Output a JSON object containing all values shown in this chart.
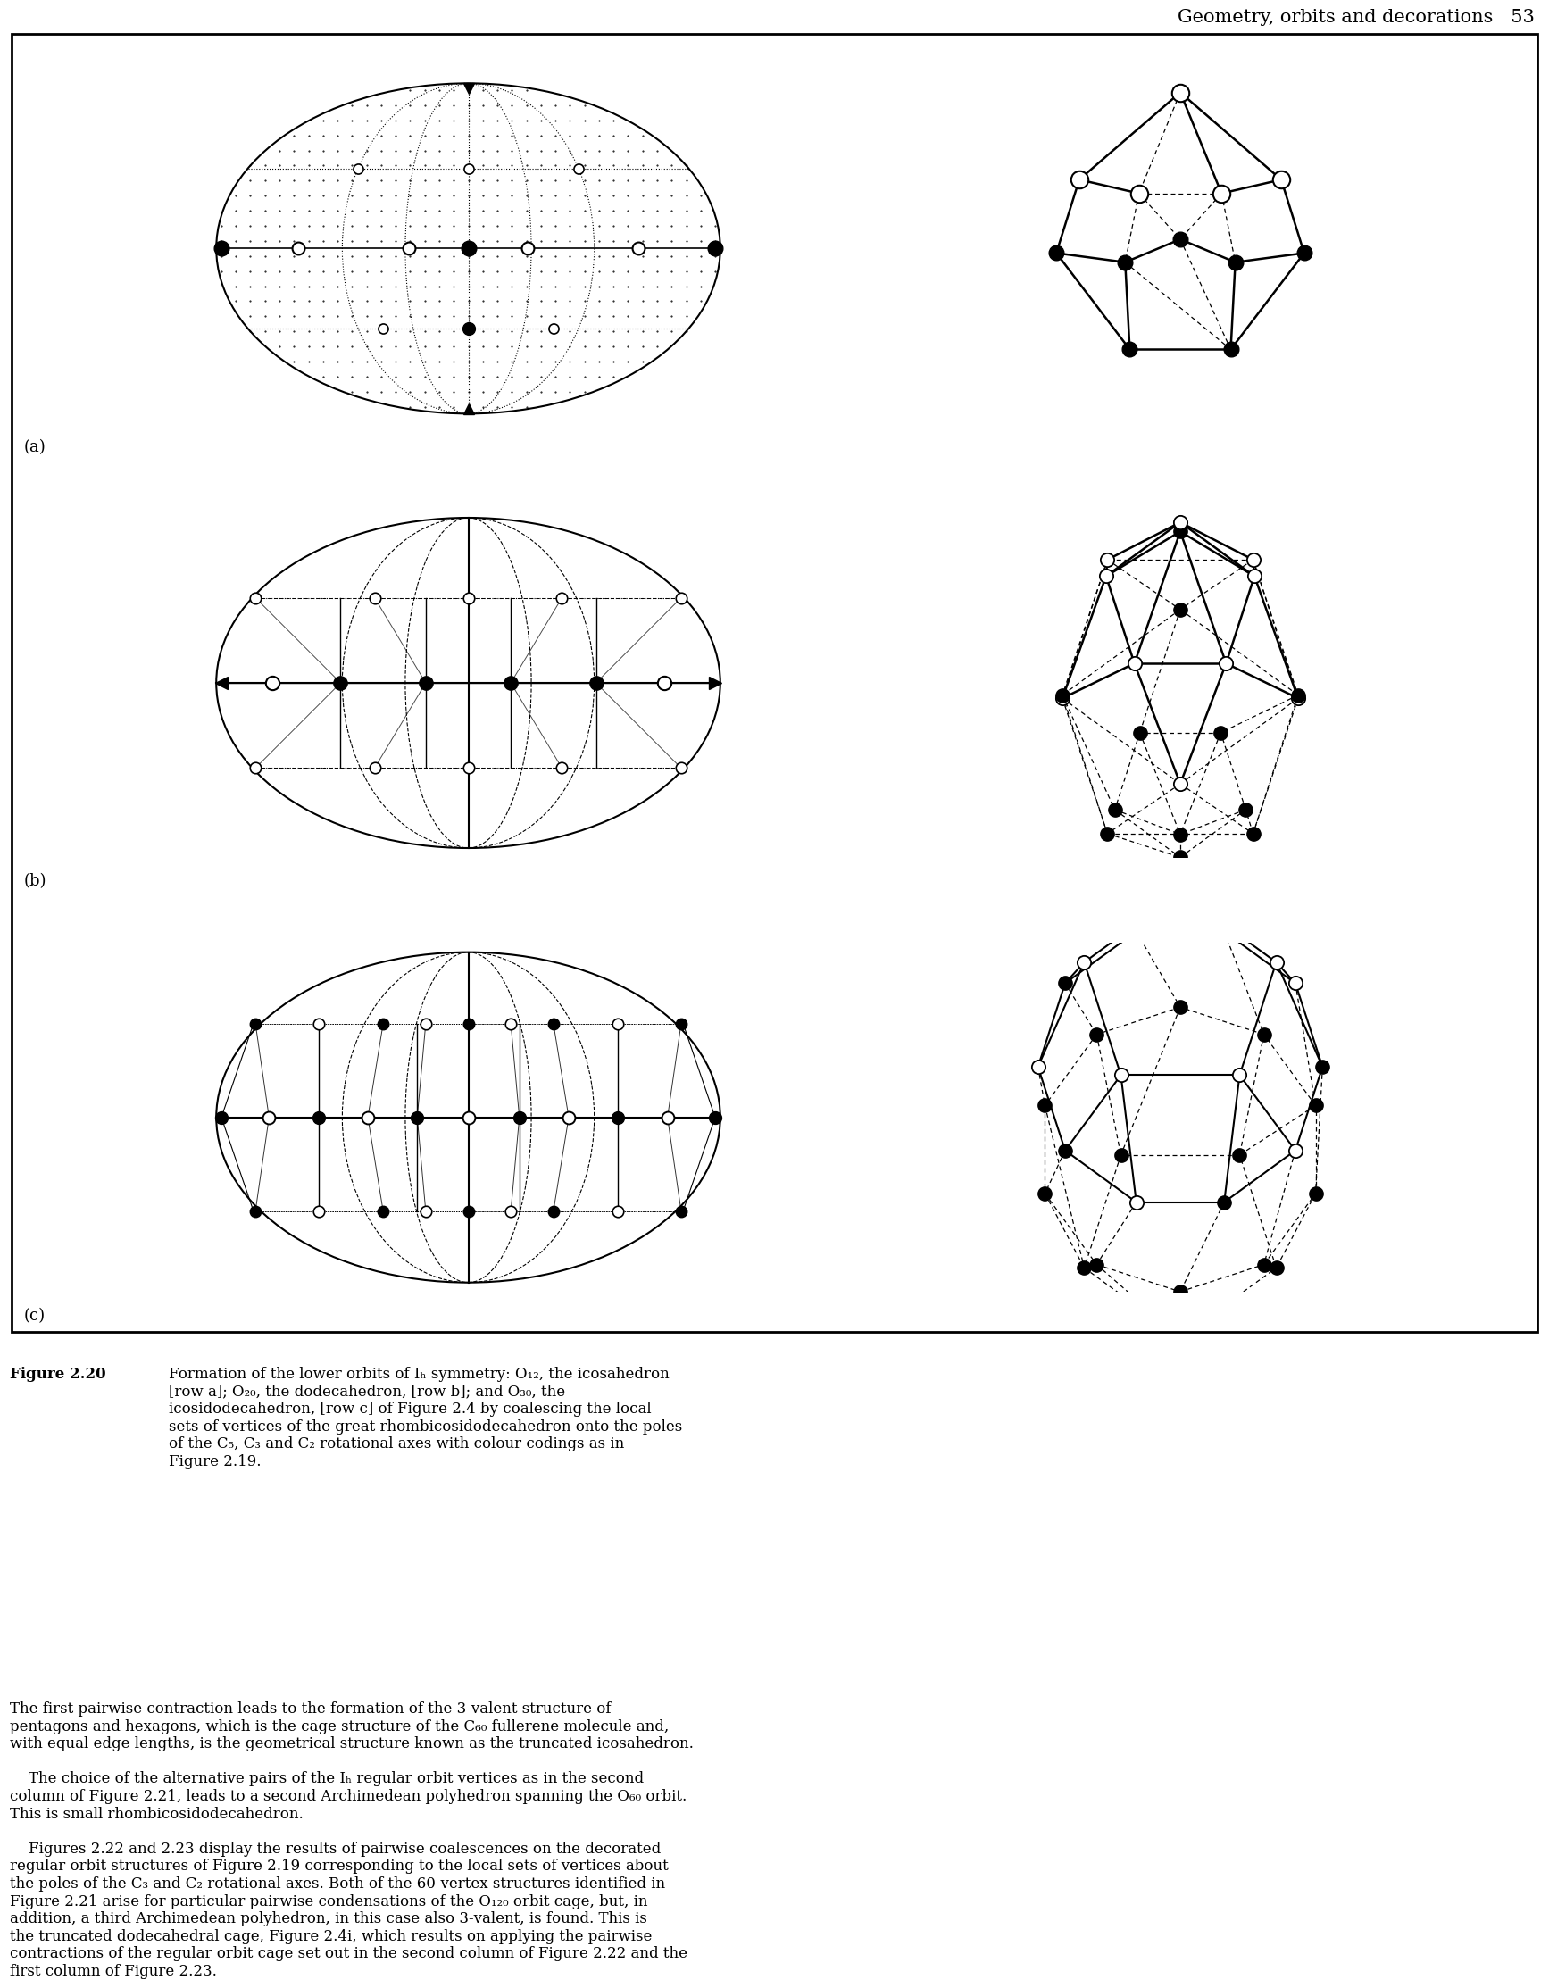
{
  "header_text": "Geometry, orbits and decorations   53",
  "fig_label": "Figure 2.20",
  "caption_rest": "  Formation of the lower orbits of Iₕ symmetry: O₁₂, the icosahedron [row a]; O₂₀, the dodecahedron, [row b]; and O₃₀, the icosidodecahedron, [row c] of Figure 2.4 by coalescing the local sets of vertices of the great rhombicosidodecahedron onto the poles of the C₅, C₃ and C₂ rotational axes with colour codings as in Figure 2.19.",
  "body_para1": "The first pairwise contraction leads to the formation of the 3-valent structure of pentagons and hexagons, which is the cage structure of the C₆₀ fullerene molecule and, with equal edge lengths, is the geometrical structure known as the truncated icosahedron.",
  "body_para2": "    The choice of the alternative pairs of the Iₕ regular orbit vertices as in the second column of Figure 2.21, leads to a second Archimedean polyhedron spanning the O₆₀ orbit. This is small rhombicosidodecahedron.",
  "body_para3": "    Figures 2.22 and 2.23 display the results of pairwise coalescences on the decorated regular orbit structures of Figure 2.19 corresponding to the local sets of vertices about the poles of the C₃ and C₂ rotational axes. Both of the 60-vertex structures identified in Figure 2.21 arise for particular pairwise condensations of the O₁₂₀ orbit cage, but, in addition, a third Archimedean polyhedron, in this case also 3-valent, is found. This is the truncated dodecahedral cage, Figure 2.4i, which results on applying the pairwise contractions of the regular orbit cage set out in the second column of Figure 2.22 and the first column of Figure 2.23.",
  "background": "#ffffff"
}
